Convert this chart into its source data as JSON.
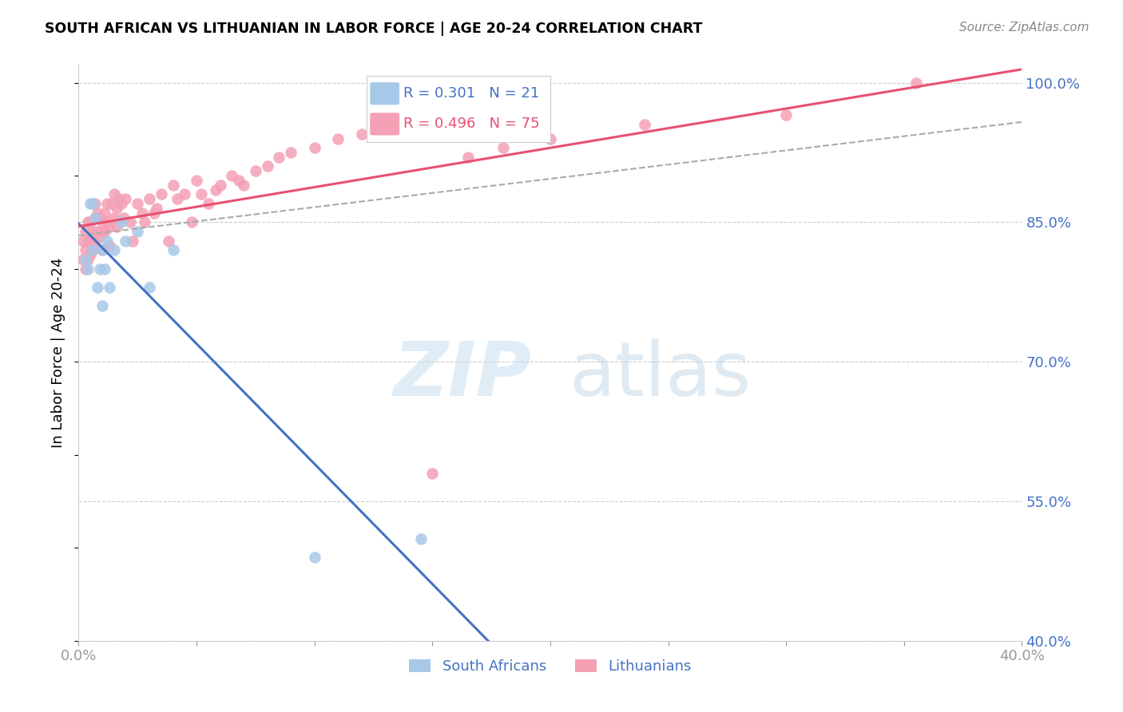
{
  "title": "SOUTH AFRICAN VS LITHUANIAN IN LABOR FORCE | AGE 20-24 CORRELATION CHART",
  "source": "Source: ZipAtlas.com",
  "ylabel": "In Labor Force | Age 20-24",
  "xmin": 0.0,
  "xmax": 0.4,
  "ymin": 0.4,
  "ymax": 1.02,
  "yticks": [
    0.4,
    0.55,
    0.7,
    0.85,
    1.0
  ],
  "ytick_labels": [
    "40.0%",
    "55.0%",
    "70.0%",
    "85.0%",
    "100.0%"
  ],
  "xticks": [
    0.0,
    0.05,
    0.1,
    0.15,
    0.2,
    0.25,
    0.3,
    0.35,
    0.4
  ],
  "xtick_labels": [
    "0.0%",
    "",
    "",
    "",
    "",
    "",
    "",
    "",
    "40.0%"
  ],
  "blue_r": 0.301,
  "blue_n": 21,
  "pink_r": 0.496,
  "pink_n": 75,
  "blue_color": "#a8c8e8",
  "pink_color": "#f4a0b5",
  "blue_line_color": "#4472c4",
  "pink_line_color": "#e85070",
  "dash_line_color": "#aaaaaa",
  "label_south_africans": "South Africans",
  "label_lithuanians": "Lithuanians",
  "blue_x": [
    0.003,
    0.004,
    0.005,
    0.006,
    0.006,
    0.007,
    0.008,
    0.009,
    0.01,
    0.01,
    0.011,
    0.012,
    0.013,
    0.015,
    0.018,
    0.02,
    0.025,
    0.03,
    0.04,
    0.1,
    0.145
  ],
  "blue_y": [
    0.81,
    0.8,
    0.87,
    0.87,
    0.82,
    0.855,
    0.78,
    0.8,
    0.82,
    0.76,
    0.8,
    0.83,
    0.78,
    0.82,
    0.85,
    0.83,
    0.84,
    0.78,
    0.82,
    0.49,
    0.51
  ],
  "pink_x": [
    0.002,
    0.002,
    0.003,
    0.003,
    0.003,
    0.004,
    0.004,
    0.004,
    0.005,
    0.005,
    0.005,
    0.006,
    0.006,
    0.007,
    0.007,
    0.007,
    0.008,
    0.008,
    0.009,
    0.009,
    0.01,
    0.01,
    0.01,
    0.011,
    0.011,
    0.012,
    0.012,
    0.013,
    0.013,
    0.014,
    0.015,
    0.015,
    0.016,
    0.016,
    0.017,
    0.018,
    0.019,
    0.02,
    0.022,
    0.023,
    0.025,
    0.027,
    0.028,
    0.03,
    0.032,
    0.033,
    0.035,
    0.038,
    0.04,
    0.042,
    0.045,
    0.048,
    0.05,
    0.052,
    0.055,
    0.058,
    0.06,
    0.065,
    0.068,
    0.07,
    0.075,
    0.08,
    0.085,
    0.09,
    0.1,
    0.11,
    0.12,
    0.13,
    0.15,
    0.165,
    0.18,
    0.2,
    0.24,
    0.3,
    0.355
  ],
  "pink_y": [
    0.83,
    0.81,
    0.84,
    0.82,
    0.8,
    0.85,
    0.83,
    0.81,
    0.85,
    0.83,
    0.815,
    0.84,
    0.82,
    0.855,
    0.83,
    0.87,
    0.86,
    0.84,
    0.855,
    0.835,
    0.85,
    0.82,
    0.84,
    0.86,
    0.84,
    0.85,
    0.87,
    0.845,
    0.825,
    0.87,
    0.88,
    0.855,
    0.865,
    0.845,
    0.875,
    0.87,
    0.855,
    0.875,
    0.85,
    0.83,
    0.87,
    0.86,
    0.85,
    0.875,
    0.86,
    0.865,
    0.88,
    0.83,
    0.89,
    0.875,
    0.88,
    0.85,
    0.895,
    0.88,
    0.87,
    0.885,
    0.89,
    0.9,
    0.895,
    0.89,
    0.905,
    0.91,
    0.92,
    0.925,
    0.93,
    0.94,
    0.945,
    0.95,
    0.58,
    0.92,
    0.93,
    0.94,
    0.955,
    0.965,
    1.0
  ]
}
